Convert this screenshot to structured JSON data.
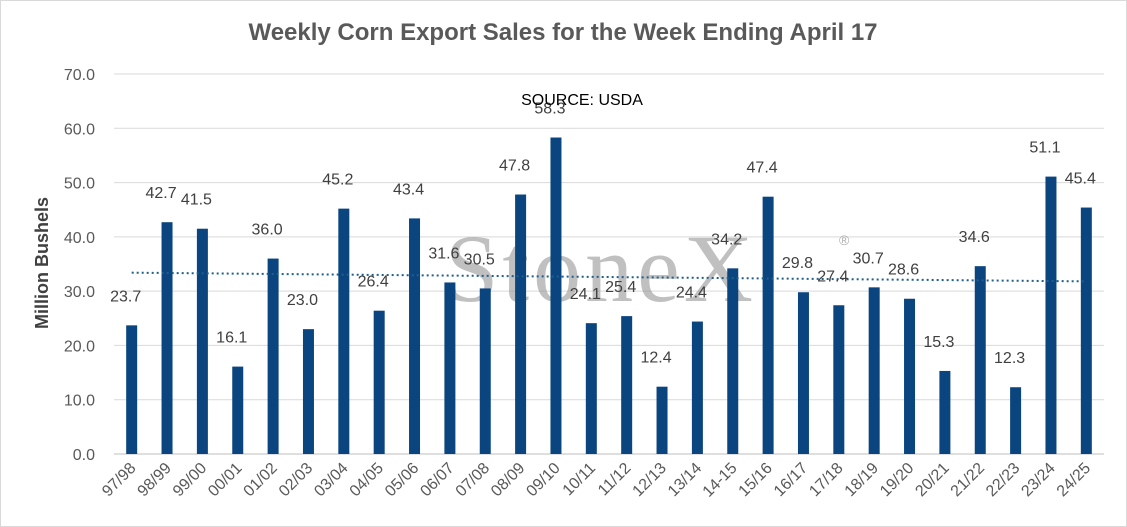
{
  "chart_data": {
    "type": "bar",
    "title": "Weekly Corn Export Sales for the Week Ending April 17",
    "ylabel": "Million Bushels",
    "xlabel": "",
    "ylim": [
      0,
      70
    ],
    "yticks": [
      "0.0",
      "10.0",
      "20.0",
      "30.0",
      "40.0",
      "50.0",
      "60.0",
      "70.0"
    ],
    "grid": true,
    "annotation": "SOURCE: USDA",
    "watermark": "StoneX",
    "watermark_mark": "®",
    "bar_color": "#0b4580",
    "trendline_color": "#1f5f8b",
    "trendline": [
      33.4,
      31.8
    ],
    "categories": [
      "97/98",
      "98/99",
      "99/00",
      "00/01",
      "01/02",
      "02/03",
      "03/04",
      "04/05",
      "05/06",
      "06/07",
      "07/08",
      "08/09",
      "09/10",
      "10/11",
      "11/12",
      "12/13",
      "13/14",
      "14-15",
      "15/16",
      "16/17",
      "17/18",
      "18/19",
      "19/20",
      "20/21",
      "21/22",
      "22/23",
      "23/24",
      "24/25"
    ],
    "values": [
      23.7,
      42.7,
      41.5,
      16.1,
      36.0,
      23.0,
      45.2,
      26.4,
      43.4,
      31.6,
      30.5,
      47.8,
      58.3,
      24.1,
      25.4,
      12.4,
      24.4,
      34.2,
      47.4,
      29.8,
      27.4,
      30.7,
      28.6,
      15.3,
      34.6,
      12.3,
      51.1,
      45.4
    ],
    "value_labels": [
      "23.7",
      "42.7",
      "41.5",
      "16.1",
      "36.0",
      "23.0",
      "45.2",
      "26.4",
      "43.4",
      "31.6",
      "30.5",
      "47.8",
      "58.3",
      "24.1",
      "25.4",
      "12.4",
      "24.4",
      "34.2",
      "47.4",
      "29.8",
      "27.4",
      "30.7",
      "28.6",
      "15.3",
      "34.6",
      "12.3",
      "51.1",
      "45.4"
    ]
  }
}
